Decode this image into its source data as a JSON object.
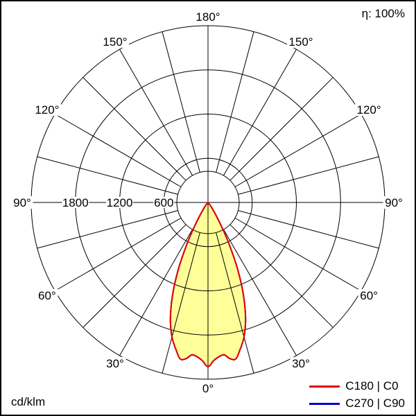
{
  "page": {
    "efficiency_label": "η: 100%",
    "unit_label": "cd/klm"
  },
  "legend": [
    {
      "label": "C180 | C0",
      "color": "#e60000"
    },
    {
      "label": "C270 | C90",
      "color": "#0000cc"
    }
  ],
  "chart_data": {
    "type": "polar",
    "subtype": "luminous-intensity-distribution",
    "unit": "cd/klm",
    "efficiency_percent": 100,
    "angle_ticks_deg": [
      0,
      30,
      60,
      90,
      120,
      150,
      180
    ],
    "angle_tick_labels": [
      "0°",
      "30°",
      "60°",
      "90°",
      "120°",
      "150°",
      "180°"
    ],
    "r_ticks": [
      600,
      1200,
      1800
    ],
    "r_tick_labels": [
      "600",
      "1200",
      "1800"
    ],
    "r_max": 2400,
    "grid": {
      "spoke_step_deg": 15,
      "ring_step": 600,
      "zero_direction": "down"
    },
    "series": [
      {
        "name": "C180 | C0",
        "color": "#e60000",
        "fill": "#ffff99",
        "symmetric": true,
        "gamma_deg": [
          0,
          2,
          4,
          6,
          8,
          10,
          12,
          15,
          18,
          21,
          24,
          27,
          30,
          33,
          36,
          40,
          45
        ],
        "values_cd_klm": [
          2230,
          2150,
          2100,
          2080,
          2140,
          2160,
          2060,
          1890,
          1650,
          1340,
          980,
          620,
          330,
          160,
          80,
          30,
          0
        ]
      },
      {
        "name": "C270 | C90",
        "color": "#0000cc",
        "fill": null,
        "symmetric": true,
        "gamma_deg": [
          0,
          2,
          4,
          6,
          8,
          10,
          12,
          15,
          18,
          21,
          24,
          27,
          30,
          33,
          36,
          40,
          45
        ],
        "values_cd_klm": [
          2230,
          2150,
          2100,
          2080,
          2140,
          2160,
          2060,
          1890,
          1650,
          1340,
          980,
          620,
          330,
          160,
          80,
          30,
          0
        ]
      }
    ]
  }
}
